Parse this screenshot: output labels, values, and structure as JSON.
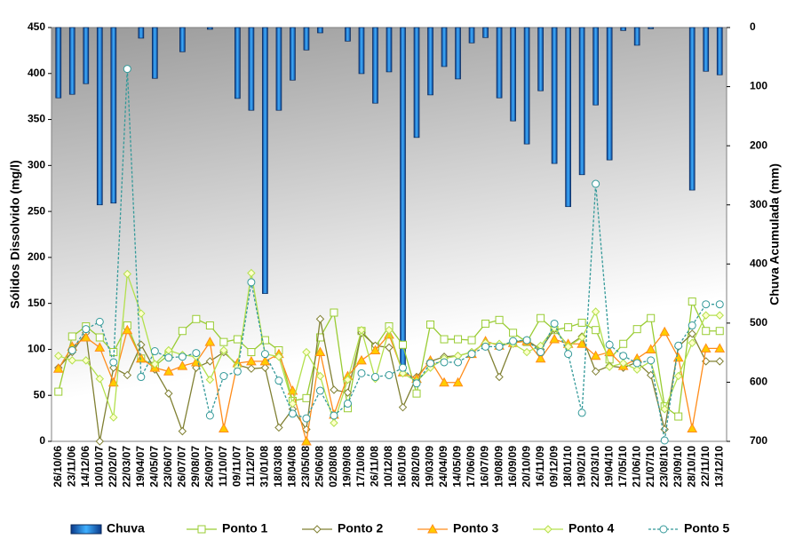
{
  "chart_data": {
    "type": "combo",
    "y_label": "Sólidos Dissolvido  (mg/l)",
    "y2_label": "Chuva Acumulada (mm)",
    "categories": [
      "26/10/06",
      "23/11/06",
      "14/12/06",
      "10/01/07",
      "22/02/07",
      "22/03/07",
      "19/04/07",
      "24/05/07",
      "23/06/07",
      "26/07/07",
      "29/08/07",
      "26/09/07",
      "11/10/07",
      "09/11/07",
      "11/12/07",
      "31/01/08",
      "18/03/08",
      "18/04/08",
      "23/05/08",
      "25/06/08",
      "02/08/08",
      "19/09/08",
      "17/10/08",
      "26/11/08",
      "10/12/08",
      "16/01/09",
      "28/02/09",
      "19/03/09",
      "24/04/09",
      "14/05/09",
      "17/06/09",
      "16/07/09",
      "19/08/09",
      "16/09/09",
      "20/10/09",
      "16/11/09",
      "09/12/09",
      "18/01/10",
      "19/02/10",
      "22/03/10",
      "19/04/10",
      "17/05/10",
      "21/06/10",
      "21/07/10",
      "23/08/10",
      "23/09/10",
      "28/10/10",
      "22/11/10",
      "13/12/10"
    ],
    "ylim": [
      0,
      450
    ],
    "yticks": [
      0,
      50,
      100,
      150,
      200,
      250,
      300,
      350,
      400,
      450
    ],
    "y2lim": [
      700,
      0
    ],
    "y2ticks": [
      0,
      100,
      200,
      300,
      400,
      500,
      600,
      700
    ],
    "series": [
      {
        "name": "Chuva",
        "type": "bar",
        "axis": "y2",
        "color": "#1f8fe0",
        "values": [
          119,
          113,
          95,
          300,
          297,
          0,
          18,
          86,
          0,
          41,
          0,
          3,
          0,
          120,
          140,
          450,
          140,
          89,
          38,
          9,
          0,
          23,
          78,
          128,
          75,
          571,
          186,
          114,
          66,
          87,
          26,
          17,
          119,
          158,
          197,
          107,
          230,
          303,
          249,
          131,
          224,
          5,
          30,
          2,
          0,
          0,
          275,
          74,
          80
        ]
      },
      {
        "name": "Ponto 1",
        "type": "line",
        "marker": "square",
        "color": "#99cc33",
        "fill": "#ffffff",
        "values": [
          54,
          114,
          125,
          113,
          97,
          126,
          90,
          82,
          94,
          120,
          133,
          126,
          108,
          111,
          97,
          110,
          99,
          44,
          47,
          113,
          140,
          36,
          120,
          103,
          125,
          105,
          52,
          127,
          111,
          111,
          110,
          128,
          132,
          118,
          108,
          134,
          121,
          124,
          129,
          121,
          89,
          106,
          122,
          134,
          38,
          27,
          152,
          120,
          120
        ]
      },
      {
        "name": "Ponto 2",
        "type": "line",
        "marker": "diamond",
        "color": "#808033",
        "fill": "#ffffff",
        "values": [
          80,
          97,
          118,
          0,
          80,
          72,
          105,
          78,
          52,
          11,
          80,
          87,
          97,
          83,
          79,
          80,
          15,
          35,
          13,
          133,
          56,
          53,
          118,
          104,
          102,
          37,
          70,
          87,
          92,
          93,
          97,
          107,
          70,
          108,
          110,
          100,
          122,
          104,
          114,
          76,
          82,
          80,
          86,
          72,
          13,
          103,
          117,
          87,
          87
        ]
      },
      {
        "name": "Ponto 3",
        "type": "line",
        "marker": "triangle",
        "color": "#ff8c1a",
        "fill": "#ffcc00",
        "values": [
          79,
          103,
          113,
          102,
          64,
          121,
          90,
          80,
          76,
          82,
          86,
          108,
          14,
          85,
          87,
          87,
          95,
          55,
          0,
          97,
          29,
          71,
          88,
          99,
          116,
          75,
          68,
          88,
          64,
          64,
          95,
          109,
          104,
          107,
          109,
          90,
          111,
          106,
          106,
          93,
          97,
          82,
          90,
          100,
          119,
          91,
          14,
          101,
          101
        ]
      },
      {
        "name": "Ponto 4",
        "type": "line",
        "marker": "diamond",
        "color": "#b3e04d",
        "fill": "#ffffcc",
        "values": [
          93,
          88,
          88,
          68,
          26,
          182,
          139,
          84,
          99,
          94,
          92,
          67,
          99,
          81,
          183,
          95,
          92,
          41,
          97,
          71,
          20,
          67,
          121,
          68,
          121,
          74,
          65,
          80,
          90,
          93,
          97,
          107,
          106,
          106,
          97,
          104,
          123,
          103,
          113,
          141,
          81,
          85,
          78,
          87,
          35,
          71,
          107,
          137,
          137
        ]
      },
      {
        "name": "Ponto 5",
        "type": "line",
        "marker": "circle",
        "dash": true,
        "color": "#339999",
        "fill": "#ffffff",
        "values": [
          null,
          99,
          122,
          130,
          86,
          405,
          70,
          98,
          91,
          92,
          96,
          28,
          71,
          76,
          173,
          95,
          66,
          30,
          25,
          55,
          28,
          41,
          74,
          70,
          72,
          80,
          63,
          85,
          86,
          86,
          95,
          103,
          103,
          109,
          110,
          97,
          128,
          95,
          31,
          280,
          105,
          93,
          85,
          88,
          1,
          104,
          126,
          149,
          149
        ]
      }
    ]
  }
}
